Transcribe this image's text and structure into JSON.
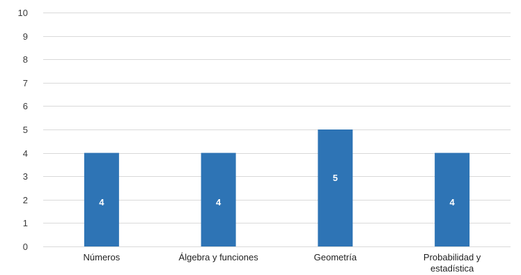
{
  "chart_data": {
    "type": "bar",
    "title": "",
    "xlabel": "",
    "ylabel": "",
    "categories": [
      [
        "Números"
      ],
      [
        "Álgebra y funciones"
      ],
      [
        "Geometría"
      ],
      [
        "Probabilidad y",
        "estadística"
      ]
    ],
    "values": [
      4,
      4,
      5,
      4
    ],
    "data_labels": [
      "4",
      "4",
      "5",
      "4"
    ],
    "ylim": [
      0,
      10
    ],
    "yticks": [
      0,
      1,
      2,
      3,
      4,
      5,
      6,
      7,
      8,
      9,
      10
    ],
    "grid": true,
    "legend": "none",
    "bar_color": "#2e74b5",
    "grid_color": "#d9d9d9"
  }
}
